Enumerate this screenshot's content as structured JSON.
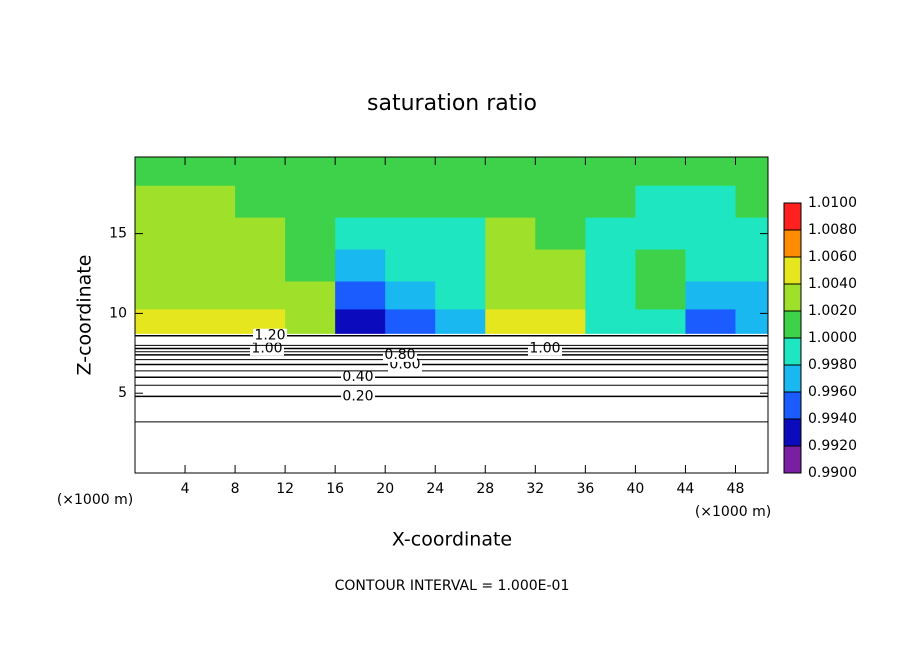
{
  "chart_data": {
    "type": "contour",
    "title": "saturation ratio",
    "xlabel": "X-coordinate",
    "ylabel": "Z-coordinate",
    "xunit": "(×1000 m)",
    "yunit": "(×1000 m)",
    "footnote": "CONTOUR INTERVAL = 1.000E-01",
    "xlim": [
      0,
      50.6
    ],
    "ylim": [
      0,
      19.8
    ],
    "xticks": [
      4,
      8,
      12,
      16,
      20,
      24,
      28,
      32,
      36,
      40,
      44,
      48
    ],
    "yticks": [
      5,
      10,
      15
    ],
    "field": {
      "x": [
        2,
        6,
        10,
        14,
        18,
        22,
        26,
        30,
        34,
        38,
        42,
        46,
        50
      ],
      "z": [
        19,
        17,
        15,
        13,
        11,
        9.5
      ],
      "values": [
        [
          1.001,
          1.001,
          1.001,
          1.0005,
          1.0005,
          1.0005,
          1.001,
          1.001,
          1.001,
          1.0005,
          1.0005,
          1.0005,
          1.001
        ],
        [
          1.002,
          1.002,
          1.0015,
          1.0005,
          1.0,
          1.0,
          1.0005,
          1.0015,
          1.0015,
          1.0005,
          0.999,
          0.9995,
          1.0005
        ],
        [
          1.002,
          1.003,
          1.002,
          1.0005,
          0.999,
          0.999,
          0.9995,
          1.002,
          1.0015,
          0.9995,
          0.999,
          0.999,
          0.9995
        ],
        [
          1.002,
          1.003,
          1.003,
          1.001,
          0.997,
          0.998,
          0.999,
          1.002,
          1.002,
          0.999,
          1.001,
          0.998,
          0.999
        ],
        [
          1.002,
          1.003,
          1.003,
          1.002,
          0.995,
          0.997,
          0.9985,
          1.003,
          1.003,
          0.999,
          1.001,
          0.996,
          0.997
        ],
        [
          1.004,
          1.005,
          1.005,
          1.002,
          0.992,
          0.995,
          0.9975,
          1.004,
          1.005,
          0.999,
          0.998,
          0.994,
          0.996
        ]
      ]
    },
    "clim": [
      0.99,
      1.01
    ],
    "colors": [
      "#7a1fa2",
      "#0b0bbd",
      "#1a5cff",
      "#19b8f0",
      "#1ee6c0",
      "#3ed24a",
      "#9ee02a",
      "#e6e61e",
      "#ff8c00",
      "#ff2020"
    ],
    "cticks": [
      {
        "value": 0.99,
        "label": "0.9900"
      },
      {
        "value": 0.992,
        "label": "0.9920"
      },
      {
        "value": 0.994,
        "label": "0.9940"
      },
      {
        "value": 0.996,
        "label": "0.9960"
      },
      {
        "value": 0.998,
        "label": "0.9980"
      },
      {
        "value": 1.0,
        "label": "1.0000"
      },
      {
        "value": 1.002,
        "label": "1.0020"
      },
      {
        "value": 1.004,
        "label": "1.0040"
      },
      {
        "value": 1.006,
        "label": "1.0060"
      },
      {
        "value": 1.008,
        "label": "1.0080"
      },
      {
        "value": 1.01,
        "label": "1.0100"
      }
    ],
    "contours": [
      {
        "level": 0.1,
        "z": 3.2
      },
      {
        "level": 0.2,
        "z": 4.8,
        "label": "0.20"
      },
      {
        "level": 0.3,
        "z": 5.5
      },
      {
        "level": 0.4,
        "z": 6.0,
        "label": "0.40"
      },
      {
        "level": 0.5,
        "z": 6.4
      },
      {
        "level": 0.6,
        "z": 6.8,
        "label": "0.60"
      },
      {
        "level": 0.7,
        "z": 7.1
      },
      {
        "level": 0.8,
        "z": 7.4,
        "label": "0.80"
      },
      {
        "level": 0.9,
        "z": 7.6
      },
      {
        "level": 1.0,
        "z": 7.8,
        "label": "1.00"
      },
      {
        "level": 1.1,
        "z": 8.0
      },
      {
        "level": 1.2,
        "z": 8.6,
        "label": "1.20"
      }
    ]
  }
}
